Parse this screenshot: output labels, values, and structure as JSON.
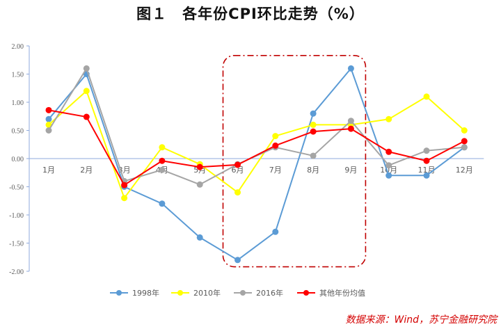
{
  "chart_data": {
    "type": "line",
    "title": "图１　各年份CPI环比走势（%）",
    "xlabel": "",
    "ylabel": "",
    "ylim": [
      -2.0,
      2.0
    ],
    "ytick_step": 0.5,
    "yticks": [
      "2.00",
      "1.50",
      "1.00",
      "0.50",
      "0.00",
      "-0.50",
      "-1.00",
      "-1.50",
      "-2.00"
    ],
    "categories": [
      "1月",
      "2月",
      "3月",
      "4月",
      "5月",
      "6月",
      "7月",
      "8月",
      "9月",
      "10月",
      "11月",
      "12月"
    ],
    "series": [
      {
        "name": "1998年",
        "color": "#5b9bd5",
        "values": [
          0.7,
          1.5,
          -0.5,
          -0.8,
          -1.4,
          -1.8,
          -1.3,
          0.8,
          1.6,
          -0.3,
          -0.3,
          0.2
        ]
      },
      {
        "name": "2010年",
        "color": "#ffff00",
        "values": [
          0.6,
          1.2,
          -0.7,
          0.2,
          -0.1,
          -0.6,
          0.4,
          0.6,
          0.6,
          0.7,
          1.1,
          0.5
        ]
      },
      {
        "name": "2016年",
        "color": "#a5a5a5",
        "values": [
          0.5,
          1.6,
          -0.4,
          -0.2,
          -0.46,
          -0.1,
          0.2,
          0.05,
          0.67,
          -0.12,
          0.14,
          0.2
        ]
      },
      {
        "name": "其他年份均值",
        "color": "#ff0000",
        "values": [
          0.86,
          0.74,
          -0.47,
          -0.04,
          -0.15,
          -0.11,
          0.23,
          0.48,
          0.53,
          0.12,
          -0.04,
          0.31
        ]
      }
    ],
    "highlight": {
      "from_category": "6月",
      "to_category": "9月",
      "color": "#c00000",
      "style": "dash-dot"
    },
    "legend_position": "bottom",
    "grid": false
  },
  "source_text": "数据来源：Wind，苏宁金融研究院"
}
